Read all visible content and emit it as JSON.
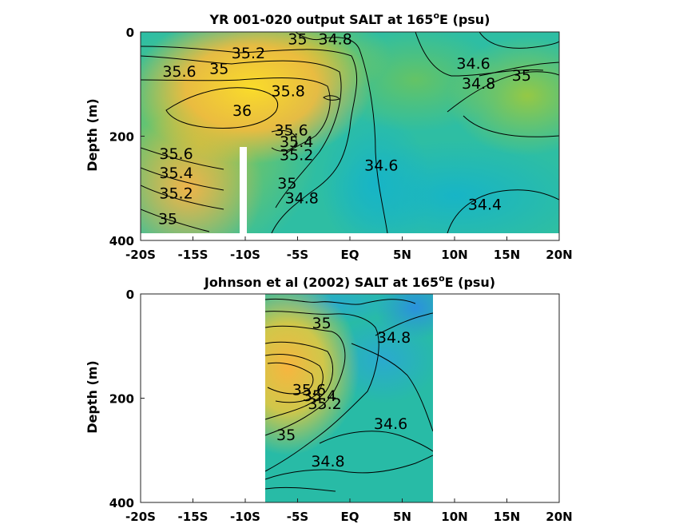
{
  "chart_data": [
    {
      "type": "heatmap",
      "title": "YR 001-020 output SALT at 165",
      "title_sup": "o",
      "title_suffix": "E (psu)",
      "ylabel": "Depth (m)",
      "xlim": [
        -20,
        20
      ],
      "ylim": [
        0,
        400
      ],
      "y_reversed": true,
      "x_ticks": [
        -20,
        -15,
        -10,
        -5,
        0,
        5,
        10,
        15,
        20
      ],
      "x_tick_labels": [
        "-20S",
        "-15S",
        "-10S",
        "-5S",
        "EQ",
        "5N",
        "10N",
        "15N",
        "20N"
      ],
      "y_ticks": [
        0,
        200,
        400
      ],
      "y_tick_labels": [
        "0",
        "200",
        "400"
      ],
      "data_extent": {
        "x": [
          -20,
          20
        ],
        "depth": [
          0,
          387
        ]
      },
      "colormap_range": [
        34.2,
        36.0
      ],
      "salinity_cores": [
        {
          "lat": -11,
          "depth": 140,
          "salt": 36.0
        },
        {
          "lat": -15,
          "depth": 90,
          "salt": 35.8
        },
        {
          "lat": -17,
          "depth": 250,
          "salt": 35.6
        },
        {
          "lat": 15,
          "depth": 150,
          "salt": 35.0
        },
        {
          "lat": 14,
          "depth": 330,
          "salt": 34.4
        },
        {
          "lat": 2,
          "depth": 270,
          "salt": 34.55
        }
      ],
      "contour_labels": [
        {
          "text": "35",
          "lat": -12.5,
          "depth": 70
        },
        {
          "text": "35.2",
          "lat": -9.7,
          "depth": 40
        },
        {
          "text": "35",
          "lat": -5,
          "depth": 13
        },
        {
          "text": "34.8",
          "lat": -1.4,
          "depth": 13
        },
        {
          "text": "35.6",
          "lat": -16.3,
          "depth": 75
        },
        {
          "text": "35.8",
          "lat": -5.9,
          "depth": 113
        },
        {
          "text": "36",
          "lat": -10.3,
          "depth": 150
        },
        {
          "text": "35.6",
          "lat": -5.6,
          "depth": 188
        },
        {
          "text": "35.4",
          "lat": -5.1,
          "depth": 210
        },
        {
          "text": "35.2",
          "lat": -5.1,
          "depth": 235
        },
        {
          "text": "35.6",
          "lat": -16.6,
          "depth": 233
        },
        {
          "text": "35.4",
          "lat": -16.6,
          "depth": 270
        },
        {
          "text": "35.2",
          "lat": -16.6,
          "depth": 309
        },
        {
          "text": "35",
          "lat": -17.4,
          "depth": 358
        },
        {
          "text": "35",
          "lat": -6,
          "depth": 290
        },
        {
          "text": "34.8",
          "lat": -4.6,
          "depth": 318
        },
        {
          "text": "34.6",
          "lat": 3,
          "depth": 255
        },
        {
          "text": "34.6",
          "lat": 11.8,
          "depth": 60
        },
        {
          "text": "34.8",
          "lat": 12.3,
          "depth": 98
        },
        {
          "text": "35",
          "lat": 16.4,
          "depth": 83
        },
        {
          "text": "34.4",
          "lat": 12.9,
          "depth": 330
        }
      ]
    },
    {
      "type": "heatmap",
      "title": "Johnson et al (2002) SALT at 165",
      "title_sup": "o",
      "title_suffix": "E (psu)",
      "ylabel": "Depth (m)",
      "xlim": [
        -20,
        20
      ],
      "ylim": [
        0,
        400
      ],
      "y_reversed": true,
      "x_ticks": [
        -20,
        -15,
        -10,
        -5,
        0,
        5,
        10,
        15,
        20
      ],
      "x_tick_labels": [
        "-20S",
        "-15S",
        "-10S",
        "-5S",
        "EQ",
        "5N",
        "10N",
        "15N",
        "20N"
      ],
      "y_ticks": [
        0,
        200,
        400
      ],
      "y_tick_labels": [
        "0",
        "200",
        "400"
      ],
      "data_extent": {
        "x": [
          -8,
          8
        ],
        "depth": [
          0,
          400
        ]
      },
      "colormap_range": [
        34.2,
        36.0
      ],
      "salinity_cores": [
        {
          "lat": -5.5,
          "depth": 170,
          "salt": 35.75
        },
        {
          "lat": -4,
          "depth": 130,
          "salt": 35.6
        },
        {
          "lat": 6.5,
          "depth": 15,
          "salt": 34.2
        },
        {
          "lat": 4,
          "depth": 320,
          "salt": 34.65
        }
      ],
      "contour_labels": [
        {
          "text": "35",
          "lat": -2.7,
          "depth": 55
        },
        {
          "text": "34.8",
          "lat": 4.2,
          "depth": 83
        },
        {
          "text": "35.6",
          "lat": -3.9,
          "depth": 183
        },
        {
          "text": "35.4",
          "lat": -2.9,
          "depth": 195
        },
        {
          "text": "35.2",
          "lat": -2.4,
          "depth": 210
        },
        {
          "text": "34.6",
          "lat": 3.9,
          "depth": 248
        },
        {
          "text": "35",
          "lat": -6.1,
          "depth": 270
        },
        {
          "text": "34.8",
          "lat": -2.1,
          "depth": 320
        }
      ]
    }
  ]
}
